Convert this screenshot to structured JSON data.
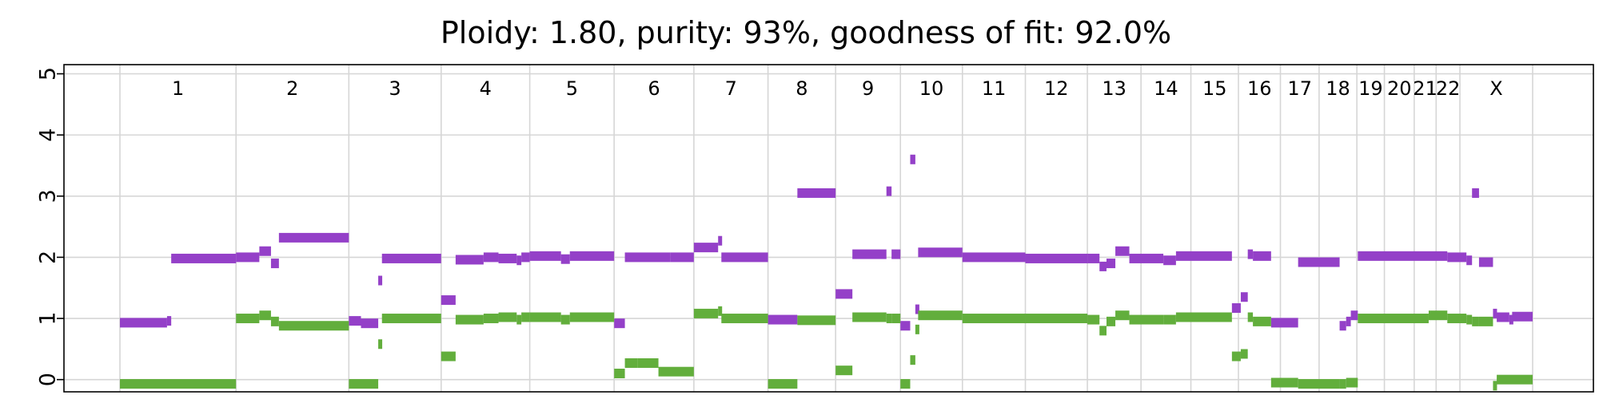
{
  "chart_data": {
    "type": "scatter",
    "title": "Ploidy: 1.80, purity: 93%, goodness of fit: 92.0%",
    "xlabel": "",
    "ylabel": "",
    "ylim": [
      -0.2,
      5.15
    ],
    "yticks": [
      0,
      1,
      2,
      3,
      4,
      5
    ],
    "grid": true,
    "x_unit": "genomic position (Mb, cumulative)",
    "chromosomes": [
      {
        "name": "1",
        "start": 0,
        "end": 249
      },
      {
        "name": "2",
        "start": 249,
        "end": 491
      },
      {
        "name": "3",
        "start": 491,
        "end": 689
      },
      {
        "name": "4",
        "start": 689,
        "end": 879
      },
      {
        "name": "5",
        "start": 879,
        "end": 1060
      },
      {
        "name": "6",
        "start": 1060,
        "end": 1231
      },
      {
        "name": "7",
        "start": 1231,
        "end": 1390
      },
      {
        "name": "8",
        "start": 1390,
        "end": 1535
      },
      {
        "name": "9",
        "start": 1535,
        "end": 1674
      },
      {
        "name": "10",
        "start": 1674,
        "end": 1807
      },
      {
        "name": "11",
        "start": 1807,
        "end": 1942
      },
      {
        "name": "12",
        "start": 1942,
        "end": 2075
      },
      {
        "name": "13",
        "start": 2075,
        "end": 2190
      },
      {
        "name": "14",
        "start": 2190,
        "end": 2297
      },
      {
        "name": "15",
        "start": 2297,
        "end": 2399
      },
      {
        "name": "16",
        "start": 2399,
        "end": 2489
      },
      {
        "name": "17",
        "start": 2489,
        "end": 2572
      },
      {
        "name": "18",
        "start": 2572,
        "end": 2653
      },
      {
        "name": "19",
        "start": 2653,
        "end": 2712
      },
      {
        "name": "20",
        "start": 2712,
        "end": 2776
      },
      {
        "name": "21",
        "start": 2776,
        "end": 2823
      },
      {
        "name": "22",
        "start": 2823,
        "end": 2874
      },
      {
        "name": "X",
        "start": 2874,
        "end": 3030
      }
    ],
    "series": [
      {
        "color": "#9440c8",
        "segments": [
          [
            0,
            101,
            0.93
          ],
          [
            101,
            110,
            0.96
          ],
          [
            110,
            249,
            1.98
          ],
          [
            249,
            299,
            2.0
          ],
          [
            299,
            324,
            2.1
          ],
          [
            324,
            341,
            1.9
          ],
          [
            341,
            491,
            2.32
          ],
          [
            491,
            517,
            0.96
          ],
          [
            517,
            554,
            0.92
          ],
          [
            554,
            562,
            1.62
          ],
          [
            562,
            689,
            1.98
          ],
          [
            689,
            720,
            1.3
          ],
          [
            720,
            780,
            1.96
          ],
          [
            780,
            812,
            2.0
          ],
          [
            812,
            851,
            1.98
          ],
          [
            851,
            861,
            1.95
          ],
          [
            861,
            879,
            2.0
          ],
          [
            879,
            946,
            2.02
          ],
          [
            946,
            965,
            1.97
          ],
          [
            965,
            1060,
            2.02
          ],
          [
            1060,
            1083,
            0.92
          ],
          [
            1083,
            1180,
            2.0
          ],
          [
            1180,
            1231,
            2.0
          ],
          [
            1231,
            1283,
            2.16
          ],
          [
            1283,
            1290,
            2.27
          ],
          [
            1290,
            1390,
            2.0
          ],
          [
            1390,
            1453,
            0.98
          ],
          [
            1453,
            1535,
            3.05
          ],
          [
            1535,
            1571,
            1.4
          ],
          [
            1571,
            1644,
            2.05
          ],
          [
            1644,
            1655,
            3.08
          ],
          [
            1655,
            1674,
            2.05
          ],
          [
            1674,
            1695,
            0.88
          ],
          [
            1695,
            1706,
            3.6
          ],
          [
            1706,
            1712,
            1.15
          ],
          [
            1712,
            1807,
            2.08
          ],
          [
            1807,
            1942,
            2.0
          ],
          [
            1942,
            2075,
            1.98
          ],
          [
            2075,
            2101,
            1.98
          ],
          [
            2101,
            2116,
            1.85
          ],
          [
            2116,
            2135,
            1.9
          ],
          [
            2135,
            2165,
            2.1
          ],
          [
            2165,
            2238,
            1.98
          ],
          [
            2238,
            2265,
            1.95
          ],
          [
            2265,
            2385,
            2.02
          ],
          [
            2385,
            2404,
            1.17
          ],
          [
            2404,
            2419,
            1.35
          ],
          [
            2419,
            2430,
            2.05
          ],
          [
            2430,
            2469,
            2.02
          ],
          [
            2469,
            2527,
            0.93
          ],
          [
            2527,
            2616,
            1.92
          ],
          [
            2616,
            2630,
            0.88
          ],
          [
            2630,
            2640,
            0.95
          ],
          [
            2640,
            2655,
            1.05
          ],
          [
            2655,
            2847,
            2.02
          ],
          [
            2847,
            2888,
            2.0
          ],
          [
            2888,
            2900,
            1.95
          ],
          [
            2900,
            2915,
            3.05
          ],
          [
            2915,
            2945,
            1.92
          ],
          [
            2945,
            2953,
            1.08
          ],
          [
            2953,
            2980,
            1.02
          ],
          [
            2980,
            2986,
            0.98
          ],
          [
            2986,
            3030,
            1.03
          ]
        ]
      },
      {
        "color": "#62ae3c",
        "segments": [
          [
            0,
            249,
            -0.07
          ],
          [
            249,
            299,
            1.0
          ],
          [
            299,
            324,
            1.05
          ],
          [
            324,
            341,
            0.95
          ],
          [
            341,
            491,
            0.88
          ],
          [
            491,
            554,
            -0.07
          ],
          [
            554,
            562,
            0.58
          ],
          [
            562,
            689,
            1.0
          ],
          [
            689,
            720,
            0.38
          ],
          [
            720,
            780,
            0.98
          ],
          [
            780,
            812,
            1.0
          ],
          [
            812,
            851,
            1.02
          ],
          [
            851,
            861,
            0.98
          ],
          [
            861,
            879,
            1.02
          ],
          [
            879,
            946,
            1.02
          ],
          [
            946,
            965,
            0.98
          ],
          [
            965,
            1060,
            1.02
          ],
          [
            1060,
            1083,
            0.1
          ],
          [
            1083,
            1110,
            0.27
          ],
          [
            1110,
            1155,
            0.27
          ],
          [
            1155,
            1231,
            0.13
          ],
          [
            1231,
            1283,
            1.08
          ],
          [
            1283,
            1290,
            1.12
          ],
          [
            1290,
            1390,
            1.0
          ],
          [
            1390,
            1453,
            -0.07
          ],
          [
            1453,
            1535,
            0.97
          ],
          [
            1535,
            1571,
            0.15
          ],
          [
            1571,
            1644,
            1.02
          ],
          [
            1644,
            1655,
            1.0
          ],
          [
            1655,
            1674,
            1.0
          ],
          [
            1674,
            1695,
            -0.07
          ],
          [
            1695,
            1706,
            0.32
          ],
          [
            1706,
            1712,
            0.82
          ],
          [
            1712,
            1807,
            1.05
          ],
          [
            1807,
            1942,
            1.0
          ],
          [
            1942,
            2075,
            1.0
          ],
          [
            2075,
            2101,
            0.98
          ],
          [
            2101,
            2116,
            0.8
          ],
          [
            2116,
            2135,
            0.95
          ],
          [
            2135,
            2165,
            1.05
          ],
          [
            2165,
            2238,
            0.98
          ],
          [
            2238,
            2265,
            0.98
          ],
          [
            2265,
            2385,
            1.02
          ],
          [
            2385,
            2404,
            0.38
          ],
          [
            2404,
            2419,
            0.42
          ],
          [
            2419,
            2430,
            1.02
          ],
          [
            2430,
            2469,
            0.95
          ],
          [
            2469,
            2527,
            -0.05
          ],
          [
            2527,
            2616,
            -0.07
          ],
          [
            2616,
            2630,
            -0.07
          ],
          [
            2630,
            2655,
            -0.05
          ],
          [
            2655,
            2807,
            1.0
          ],
          [
            2807,
            2847,
            1.05
          ],
          [
            2847,
            2888,
            1.0
          ],
          [
            2888,
            2900,
            0.98
          ],
          [
            2900,
            2915,
            0.95
          ],
          [
            2915,
            2945,
            0.95
          ],
          [
            2945,
            2953,
            -0.1
          ],
          [
            2953,
            3030,
            0.0
          ]
        ]
      }
    ]
  }
}
